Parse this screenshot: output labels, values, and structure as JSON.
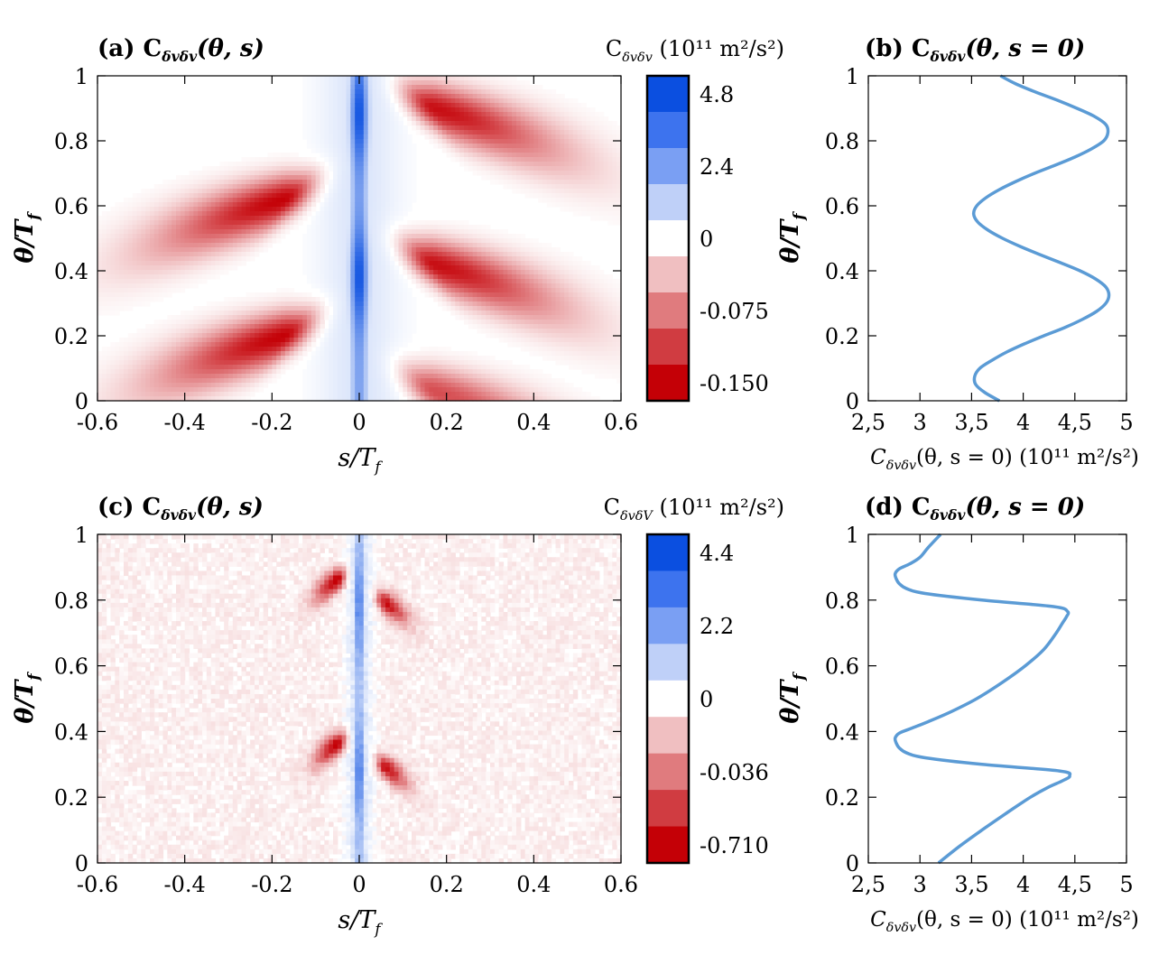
{
  "chart_data": [
    {
      "id": "a",
      "type": "heatmap",
      "title": "(a) C",
      "title_sub": "δvδv",
      "title_args": "(θ, s)",
      "xlabel": "s/T",
      "xlabel_sub": "f",
      "ylabel": "θ/T",
      "ylabel_sub": "f",
      "xlim": [
        -0.6,
        0.6
      ],
      "ylim": [
        0,
        1
      ],
      "xticks": [
        "-0.6",
        "-0.4",
        "-0.2",
        "0",
        "0.2",
        "0.4",
        "0.6"
      ],
      "yticks": [
        "0",
        "0.2",
        "0.4",
        "0.6",
        "0.8",
        "1"
      ],
      "colorbar_title": "C",
      "colorbar_title_sub": "δvδv",
      "colorbar_units": "(10¹¹ m²/s²)",
      "colorbar_labels": [
        "4.8",
        "2.4",
        "0",
        "-0.075",
        "-0.150"
      ],
      "colorbar_colors": [
        "#0b4fe0",
        "#3d73ee",
        "#7a9ff3",
        "#bfd0f8",
        "#ffffff",
        "#f0bfc1",
        "#e07b7e",
        "#d03c41",
        "#c40006"
      ],
      "features": [
        {
          "kind": "ridge",
          "s": 0.0,
          "width": 0.02,
          "peaks": [
            0.38,
            0.88
          ],
          "strength": 1.0
        },
        {
          "kind": "halo",
          "s": 0.0,
          "width": 0.09,
          "strength": 0.15
        },
        {
          "kind": "lobe",
          "s": -0.17,
          "theta": 0.62,
          "amp": 1.0
        },
        {
          "kind": "lobe",
          "s": -0.17,
          "theta": 0.2,
          "amp": 1.0
        },
        {
          "kind": "lobe",
          "s": 0.17,
          "theta": 0.42,
          "amp": 0.95
        },
        {
          "kind": "lobe",
          "s": 0.17,
          "theta": 0.9,
          "amp": 0.95
        },
        {
          "kind": "lobe",
          "s": 0.17,
          "theta": 0.03,
          "amp": 0.7
        }
      ]
    },
    {
      "id": "b",
      "type": "line",
      "title": "(b) C",
      "title_sub": "δvδv",
      "title_args": "(θ, s = 0)",
      "xlabel": "C",
      "xlabel_sub": "δvδv",
      "xlabel_args": "(θ, s = 0) (10¹¹ m²/s²)",
      "ylabel": "θ/T",
      "ylabel_sub": "f",
      "xlim": [
        2.5,
        5
      ],
      "ylim": [
        0,
        1
      ],
      "xticks": [
        "2,5",
        "3",
        "3,5",
        "4",
        "4,5",
        "5"
      ],
      "yticks": [
        "0",
        "0.2",
        "0.4",
        "0.6",
        "0.8",
        "1"
      ],
      "line_color": "#5b9bd5",
      "series": [
        {
          "name": "C(θ, s=0)",
          "theta": [
            0.0,
            0.025,
            0.05,
            0.075,
            0.1,
            0.125,
            0.15,
            0.175,
            0.2,
            0.225,
            0.25,
            0.275,
            0.3,
            0.325,
            0.35,
            0.375,
            0.4,
            0.425,
            0.45,
            0.475,
            0.5,
            0.525,
            0.55,
            0.575,
            0.6,
            0.625,
            0.65,
            0.675,
            0.7,
            0.725,
            0.75,
            0.775,
            0.8,
            0.825,
            0.85,
            0.875,
            0.9,
            0.925,
            0.95,
            0.975,
            1.0
          ],
          "values": [
            3.77,
            3.63,
            3.54,
            3.53,
            3.58,
            3.7,
            3.84,
            4.01,
            4.2,
            4.4,
            4.57,
            4.71,
            4.8,
            4.83,
            4.8,
            4.7,
            4.55,
            4.36,
            4.16,
            3.97,
            3.8,
            3.66,
            3.56,
            3.52,
            3.55,
            3.64,
            3.77,
            3.93,
            4.11,
            4.31,
            4.5,
            4.66,
            4.78,
            4.82,
            4.8,
            4.69,
            4.52,
            4.33,
            4.12,
            3.93,
            3.78
          ]
        }
      ]
    },
    {
      "id": "c",
      "type": "heatmap",
      "title": "(c) C",
      "title_sub": "δvδv",
      "title_args": "(θ, s)",
      "xlabel": "s/T",
      "xlabel_sub": "f",
      "ylabel": "θ/T",
      "ylabel_sub": "f",
      "xlim": [
        -0.6,
        0.6
      ],
      "ylim": [
        0,
        1
      ],
      "xticks": [
        "-0.6",
        "-0.4",
        "-0.2",
        "0",
        "0.2",
        "0.4",
        "0.6"
      ],
      "yticks": [
        "0",
        "0.2",
        "0.4",
        "0.6",
        "0.8",
        "1"
      ],
      "colorbar_title": "C",
      "colorbar_title_sub": "δvδV",
      "colorbar_units": "(10¹¹ m²/s²)",
      "colorbar_labels": [
        "4.4",
        "2.2",
        "0",
        "-0.036",
        "-0.710"
      ],
      "colorbar_colors": [
        "#0b4fe0",
        "#3d73ee",
        "#7a9ff3",
        "#bfd0f8",
        "#ffffff",
        "#f0bfc1",
        "#e07b7e",
        "#d03c41",
        "#c40006"
      ],
      "features": [
        {
          "kind": "ridge",
          "s": 0.0,
          "width": 0.008,
          "peaks": [
            0.28,
            0.78
          ],
          "strength": 1.0
        },
        {
          "kind": "halo",
          "s": 0.0,
          "width": 0.03,
          "strength": 0.25
        },
        {
          "kind": "spot",
          "s": -0.05,
          "theta": 0.86,
          "amp": 1.0
        },
        {
          "kind": "spot",
          "s": -0.05,
          "theta": 0.36,
          "amp": 1.0
        },
        {
          "kind": "spot",
          "s": 0.06,
          "theta": 0.79,
          "amp": 0.9
        },
        {
          "kind": "spot",
          "s": 0.06,
          "theta": 0.29,
          "amp": 0.9
        },
        {
          "kind": "noise",
          "amp": 0.12
        }
      ]
    },
    {
      "id": "d",
      "type": "line",
      "title": "(d) C",
      "title_sub": "δvδv",
      "title_args": "(θ, s = 0)",
      "xlabel": "C",
      "xlabel_sub": "δvδv",
      "xlabel_args": "(θ, s = 0) (10¹¹ m²/s²)",
      "ylabel": "θ/T",
      "ylabel_sub": "f",
      "xlim": [
        2.5,
        5
      ],
      "ylim": [
        0,
        1
      ],
      "xticks": [
        "2,5",
        "3",
        "3,5",
        "4",
        "4,5",
        "5"
      ],
      "yticks": [
        "0",
        "0.2",
        "0.4",
        "0.6",
        "0.8",
        "1"
      ],
      "line_color": "#5b9bd5",
      "series": [
        {
          "name": "C(θ, s=0)",
          "theta": [
            0.0,
            0.05,
            0.1,
            0.15,
            0.2,
            0.23,
            0.25,
            0.265,
            0.28,
            0.3,
            0.32,
            0.335,
            0.35,
            0.365,
            0.38,
            0.395,
            0.41,
            0.43,
            0.46,
            0.5,
            0.55,
            0.6,
            0.65,
            0.7,
            0.73,
            0.75,
            0.765,
            0.78,
            0.8,
            0.82,
            0.835,
            0.85,
            0.865,
            0.88,
            0.895,
            0.91,
            0.93,
            0.96,
            1.0
          ],
          "values": [
            3.18,
            3.38,
            3.6,
            3.83,
            4.07,
            4.24,
            4.38,
            4.45,
            4.35,
            3.6,
            3.05,
            2.87,
            2.8,
            2.77,
            2.76,
            2.8,
            2.92,
            3.08,
            3.3,
            3.55,
            3.8,
            4.02,
            4.2,
            4.32,
            4.38,
            4.42,
            4.43,
            4.3,
            3.6,
            3.05,
            2.87,
            2.8,
            2.77,
            2.76,
            2.8,
            2.9,
            3.0,
            3.08,
            3.2
          ]
        }
      ]
    }
  ]
}
